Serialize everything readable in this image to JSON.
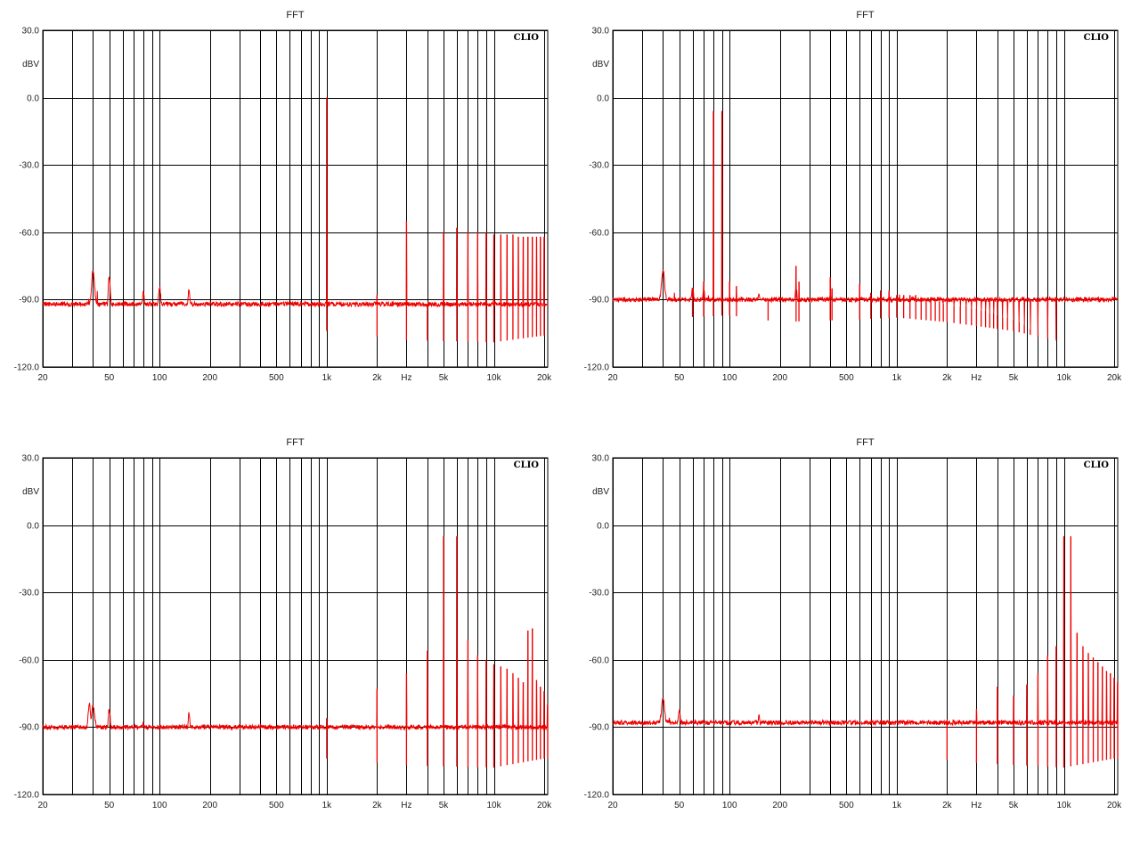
{
  "colors": {
    "trace": "#ee0000",
    "grid": "#000000",
    "background": "#ffffff"
  },
  "chart_data": [
    {
      "type": "line",
      "title": "FFT",
      "brand": "CLIO",
      "ylabel": "dBV",
      "xlabel": "Hz",
      "x_scale": "log",
      "xlim": [
        20,
        21000
      ],
      "ylim": [
        -120,
        30
      ],
      "y_ticks": [
        "30.0",
        "0.0",
        "-30.0",
        "-60.0",
        "-90.0",
        "-120.0"
      ],
      "x_tick_labels": [
        "20",
        "50",
        "100",
        "200",
        "500",
        "1k",
        "2k",
        "Hz",
        "5k",
        "10k",
        "20k"
      ],
      "noise_profile": [
        [
          20,
          -97
        ],
        [
          25,
          -102
        ],
        [
          35,
          -100
        ],
        [
          40,
          -92
        ],
        [
          50,
          -102
        ],
        [
          100,
          -100
        ],
        [
          200,
          -102
        ],
        [
          300,
          -100
        ],
        [
          500,
          -101
        ],
        [
          1000,
          -104
        ],
        [
          3000,
          -108
        ],
        [
          10000,
          -109
        ],
        [
          20000,
          -106
        ]
      ],
      "hum_peaks": [
        [
          40,
          -77
        ],
        [
          50,
          -80
        ],
        [
          60,
          -97
        ],
        [
          80,
          -87
        ],
        [
          100,
          -84
        ],
        [
          120,
          -93
        ],
        [
          150,
          -86
        ]
      ],
      "tone_lines": [
        [
          1000,
          0
        ],
        [
          2000,
          -88
        ],
        [
          3000,
          -55
        ],
        [
          4000,
          -95
        ],
        [
          5000,
          -60
        ],
        [
          6000,
          -58
        ],
        [
          7000,
          -60
        ],
        [
          8000,
          -60
        ],
        [
          9000,
          -60
        ],
        [
          10000,
          -61
        ],
        [
          11000,
          -61
        ],
        [
          12000,
          -61
        ],
        [
          13000,
          -61
        ],
        [
          14000,
          -62
        ],
        [
          15000,
          -62
        ],
        [
          16000,
          -62
        ],
        [
          17000,
          -62
        ],
        [
          18000,
          -62
        ],
        [
          19000,
          -62
        ],
        [
          20000,
          -62
        ]
      ]
    },
    {
      "type": "line",
      "title": "FFT",
      "brand": "CLIO",
      "ylabel": "dBV",
      "xlabel": "Hz",
      "x_scale": "log",
      "xlim": [
        20,
        21000
      ],
      "ylim": [
        -120,
        30
      ],
      "y_ticks": [
        "30.0",
        "0.0",
        "-30.0",
        "-60.0",
        "-90.0",
        "-120.0"
      ],
      "x_tick_labels": [
        "20",
        "50",
        "100",
        "200",
        "500",
        "1k",
        "2k",
        "Hz",
        "5k",
        "10k",
        "20k"
      ],
      "noise_profile": [
        [
          20,
          -94
        ],
        [
          25,
          -100
        ],
        [
          35,
          -98
        ],
        [
          40,
          -90
        ],
        [
          50,
          -98
        ],
        [
          100,
          -97
        ],
        [
          200,
          -100
        ],
        [
          500,
          -99
        ],
        [
          1000,
          -98
        ],
        [
          2000,
          -100
        ],
        [
          5000,
          -104
        ],
        [
          10000,
          -109
        ],
        [
          20000,
          -110
        ],
        [
          21000,
          -116
        ]
      ],
      "hum_peaks": [
        [
          40,
          -77
        ],
        [
          50,
          -90
        ],
        [
          60,
          -85
        ],
        [
          70,
          -86
        ],
        [
          150,
          -88
        ],
        [
          250,
          -85
        ],
        [
          400,
          -88
        ]
      ],
      "tone_lines": [
        [
          60,
          -90
        ],
        [
          70,
          -82
        ],
        [
          80,
          -6
        ],
        [
          90,
          -6
        ],
        [
          100,
          -82
        ],
        [
          110,
          -84
        ],
        [
          170,
          -90
        ],
        [
          250,
          -75
        ],
        [
          260,
          -82
        ],
        [
          400,
          -80
        ],
        [
          410,
          -85
        ],
        [
          600,
          -83
        ],
        [
          700,
          -87
        ],
        [
          800,
          -86
        ],
        [
          900,
          -86
        ],
        [
          1000,
          -88
        ],
        [
          1100,
          -88
        ],
        [
          1200,
          -88
        ],
        [
          1300,
          -88
        ],
        [
          1400,
          -89
        ],
        [
          1500,
          -90
        ],
        [
          1600,
          -90
        ],
        [
          1700,
          -91
        ],
        [
          1800,
          -91
        ],
        [
          1900,
          -92
        ],
        [
          2000,
          -92
        ],
        [
          2200,
          -93
        ],
        [
          2400,
          -93
        ],
        [
          2600,
          -93
        ],
        [
          2800,
          -94
        ],
        [
          3000,
          -94
        ],
        [
          3200,
          -95
        ],
        [
          3400,
          -95
        ],
        [
          3600,
          -96
        ],
        [
          3800,
          -96
        ],
        [
          4000,
          -97
        ],
        [
          4300,
          -98
        ],
        [
          4600,
          -98
        ],
        [
          5000,
          -99
        ],
        [
          5400,
          -100
        ],
        [
          5800,
          -101
        ],
        [
          6300,
          -103
        ],
        [
          7000,
          -105
        ],
        [
          8000,
          -107
        ],
        [
          9000,
          -108
        ]
      ]
    },
    {
      "type": "line",
      "title": "FFT",
      "brand": "CLIO",
      "ylabel": "dBV",
      "xlabel": "Hz",
      "x_scale": "log",
      "xlim": [
        20,
        21000
      ],
      "ylim": [
        -120,
        30
      ],
      "y_ticks": [
        "30.0",
        "0.0",
        "-30.0",
        "-60.0",
        "-90.0",
        "-120.0"
      ],
      "x_tick_labels": [
        "20",
        "50",
        "100",
        "200",
        "500",
        "1k",
        "2k",
        "Hz",
        "5k",
        "10k",
        "20k"
      ],
      "noise_profile": [
        [
          20,
          -97
        ],
        [
          25,
          -102
        ],
        [
          35,
          -98
        ],
        [
          40,
          -90
        ],
        [
          50,
          -100
        ],
        [
          100,
          -100
        ],
        [
          200,
          -102
        ],
        [
          300,
          -100
        ],
        [
          500,
          -101
        ],
        [
          1000,
          -104
        ],
        [
          3000,
          -107
        ],
        [
          10000,
          -108
        ],
        [
          20000,
          -104
        ]
      ],
      "hum_peaks": [
        [
          38,
          -80
        ],
        [
          40,
          -80
        ],
        [
          50,
          -82
        ],
        [
          80,
          -88
        ],
        [
          100,
          -90
        ],
        [
          150,
          -84
        ]
      ],
      "tone_lines": [
        [
          1000,
          -86
        ],
        [
          2000,
          -73
        ],
        [
          3000,
          -66
        ],
        [
          4000,
          -56
        ],
        [
          5000,
          -5
        ],
        [
          6000,
          -5
        ],
        [
          7000,
          -51
        ],
        [
          8000,
          -58
        ],
        [
          9000,
          -60
        ],
        [
          10000,
          -62
        ],
        [
          11000,
          -63
        ],
        [
          12000,
          -64
        ],
        [
          13000,
          -66
        ],
        [
          14000,
          -68
        ],
        [
          15000,
          -70
        ],
        [
          16000,
          -47
        ],
        [
          17000,
          -46
        ],
        [
          18000,
          -69
        ],
        [
          19000,
          -72
        ],
        [
          20000,
          -74
        ],
        [
          21000,
          -80
        ]
      ]
    },
    {
      "type": "line",
      "title": "FFT",
      "brand": "CLIO",
      "ylabel": "dBV",
      "xlabel": "Hz",
      "x_scale": "log",
      "xlim": [
        20,
        21000
      ],
      "ylim": [
        -120,
        30
      ],
      "y_ticks": [
        "30.0",
        "0.0",
        "-30.0",
        "-60.0",
        "-90.0",
        "-120.0"
      ],
      "x_tick_labels": [
        "20",
        "50",
        "100",
        "200",
        "500",
        "1k",
        "2k",
        "Hz",
        "5k",
        "10k",
        "20k"
      ],
      "noise_profile": [
        [
          20,
          -96
        ],
        [
          25,
          -102
        ],
        [
          35,
          -98
        ],
        [
          40,
          -88
        ],
        [
          50,
          -100
        ],
        [
          100,
          -100
        ],
        [
          200,
          -102
        ],
        [
          300,
          -100
        ],
        [
          500,
          -100
        ],
        [
          1000,
          -102
        ],
        [
          3000,
          -106
        ],
        [
          10000,
          -108
        ],
        [
          20000,
          -104
        ]
      ],
      "hum_peaks": [
        [
          40,
          -77
        ],
        [
          50,
          -82
        ],
        [
          80,
          -88
        ],
        [
          100,
          -88
        ],
        [
          150,
          -85
        ]
      ],
      "tone_lines": [
        [
          2000,
          -87
        ],
        [
          3000,
          -82
        ],
        [
          4000,
          -72
        ],
        [
          5000,
          -76
        ],
        [
          6000,
          -71
        ],
        [
          7000,
          -66
        ],
        [
          8000,
          -58
        ],
        [
          9000,
          -54
        ],
        [
          10000,
          -5
        ],
        [
          11000,
          -5
        ],
        [
          12000,
          -48
        ],
        [
          13000,
          -54
        ],
        [
          14000,
          -57
        ],
        [
          15000,
          -59
        ],
        [
          16000,
          -61
        ],
        [
          17000,
          -63
        ],
        [
          18000,
          -65
        ],
        [
          19000,
          -66
        ],
        [
          20000,
          -68
        ],
        [
          21000,
          -70
        ]
      ]
    }
  ]
}
